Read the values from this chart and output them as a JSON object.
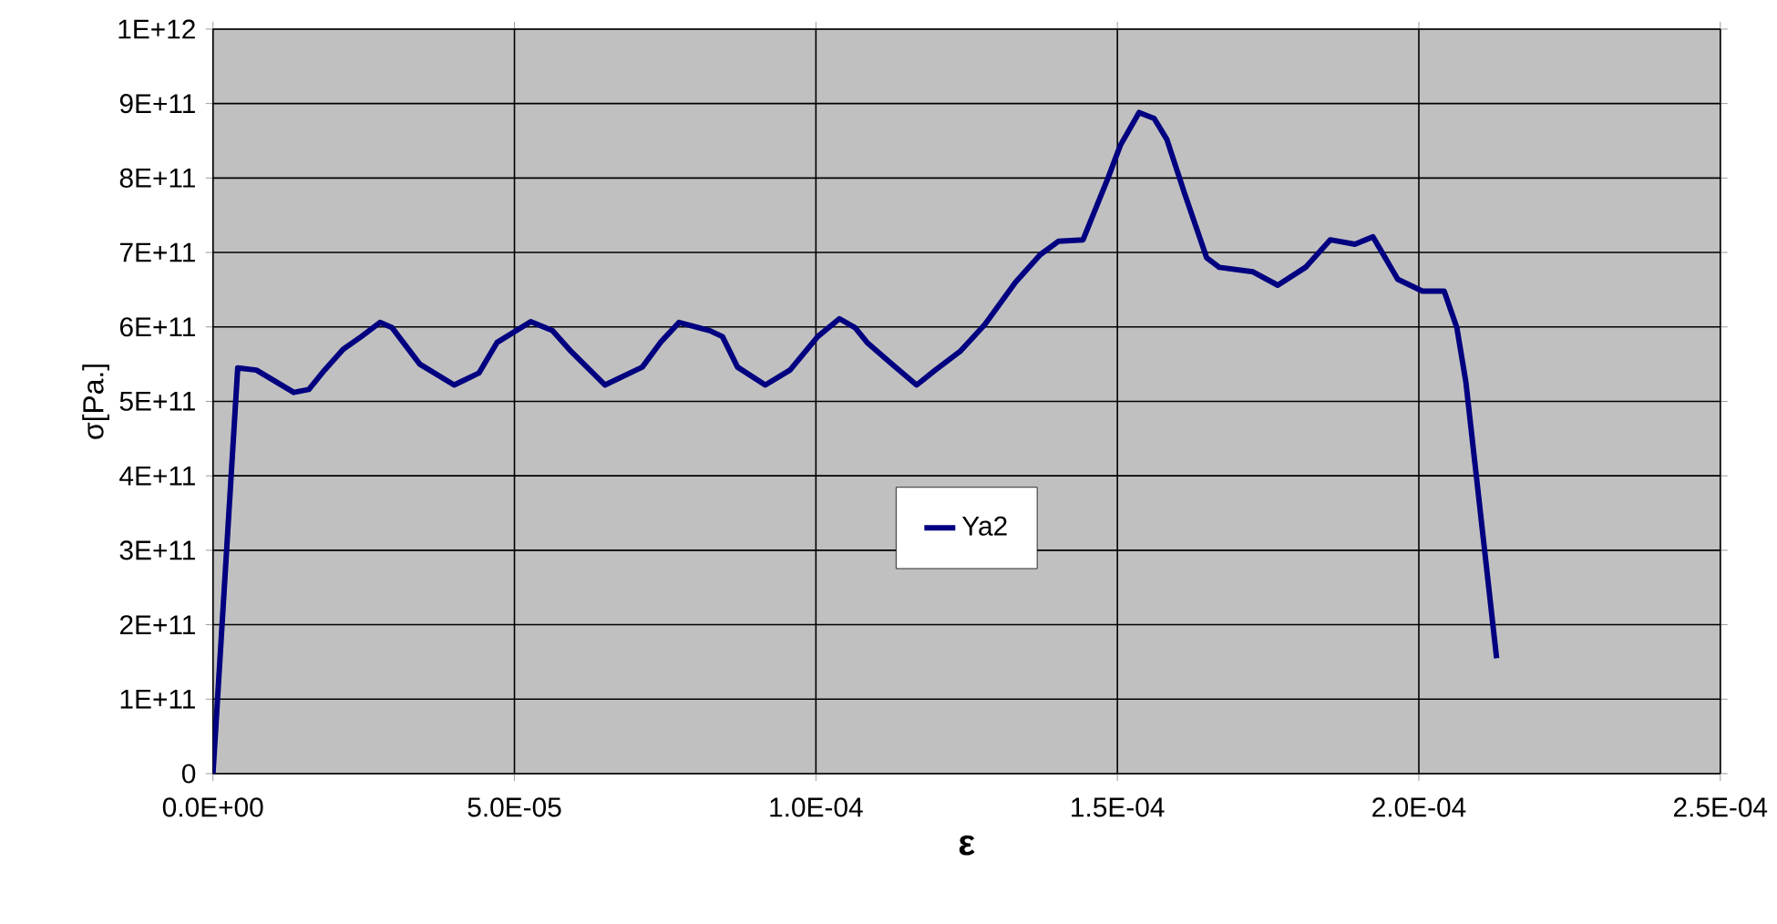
{
  "chart_data": {
    "type": "line",
    "xlabel": "ε",
    "ylabel": "σ[Pa.]",
    "x": [
      0,
      4.1e-06,
      7.2e-06,
      1.34e-05,
      1.59e-05,
      1.85e-05,
      2.16e-05,
      2.46e-05,
      2.77e-05,
      2.97e-05,
      3.43e-05,
      4e-05,
      4.41e-05,
      4.71e-05,
      5.27e-05,
      5.63e-05,
      5.94e-05,
      6.5e-05,
      7.12e-05,
      7.42e-05,
      7.73e-05,
      8.24e-05,
      8.45e-05,
      8.7e-05,
      9.16e-05,
      9.57e-05,
      0.0001003,
      0.0001039,
      0.0001065,
      0.0001085,
      0.0001126,
      0.0001167,
      0.0001198,
      0.0001239,
      0.000128,
      0.0001331,
      0.0001372,
      0.0001402,
      0.0001443,
      0.0001484,
      0.0001505,
      0.0001536,
      0.0001561,
      0.0001582,
      0.0001612,
      0.0001648,
      0.0001669,
      0.0001725,
      0.0001766,
      0.0001812,
      0.0001853,
      0.0001894,
      0.0001924,
      0.0001965,
      0.0002006,
      0.0002042,
      0.0002063,
      0.0002078,
      0.0002129
    ],
    "series": [
      {
        "name": "Ya2",
        "color": "#000080",
        "values": [
          0,
          545000000000.0,
          542000000000.0,
          512000000000.0,
          516000000000.0,
          542000000000.0,
          570000000000.0,
          587000000000.0,
          606000000000.0,
          599000000000.0,
          550000000000.0,
          522000000000.0,
          538000000000.0,
          579000000000.0,
          607000000000.0,
          595000000000.0,
          567000000000.0,
          522000000000.0,
          546000000000.0,
          579000000000.0,
          606000000000.0,
          595000000000.0,
          587000000000.0,
          546000000000.0,
          522000000000.0,
          542000000000.0,
          587000000000.0,
          611000000000.0,
          599000000000.0,
          579000000000.0,
          550000000000.0,
          522000000000.0,
          542000000000.0,
          567000000000.0,
          603000000000.0,
          660000000000.0,
          697000000000.0,
          715000000000.0,
          717000000000.0,
          799000000000.0,
          844000000000.0,
          888000000000.0,
          880000000000.0,
          852000000000.0,
          778000000000.0,
          693000000000.0,
          680000000000.0,
          674000000000.0,
          656000000000.0,
          680000000000.0,
          717000000000.0,
          711000000000.0,
          721000000000.0,
          664000000000.0,
          648000000000.0,
          648000000000.0,
          599000000000.0,
          526000000000.0,
          155000000000.0
        ]
      }
    ],
    "xlim": [
      0,
      0.00025
    ],
    "xticks": [
      {
        "value": 0,
        "label": "0.0E+00"
      },
      {
        "value": 5e-05,
        "label": "5.0E-05"
      },
      {
        "value": 0.0001,
        "label": "1.0E-04"
      },
      {
        "value": 0.00015,
        "label": "1.5E-04"
      },
      {
        "value": 0.0002,
        "label": "2.0E-04"
      },
      {
        "value": 0.00025,
        "label": "2.5E-04"
      }
    ],
    "ylim": [
      0,
      1000000000000.0
    ],
    "yticks": [
      0,
      {
        "value": 100000000000.0,
        "label": "1E+11"
      },
      {
        "value": 200000000000.0,
        "label": "2E+11"
      },
      {
        "value": 300000000000.0,
        "label": "3E+11"
      },
      {
        "value": 400000000000.0,
        "label": "4E+11"
      },
      {
        "value": 500000000000.0,
        "label": "5E+11"
      },
      {
        "value": 600000000000.0,
        "label": "6E+11"
      },
      {
        "value": 700000000000.0,
        "label": "7E+11"
      },
      {
        "value": 800000000000.0,
        "label": "8E+11"
      },
      {
        "value": 900000000000.0,
        "label": "9E+11"
      },
      {
        "value": 1000000000000.0,
        "label": "1E+12"
      }
    ],
    "grid": true,
    "legend": "center",
    "marker": "none",
    "line_style": "solid"
  }
}
